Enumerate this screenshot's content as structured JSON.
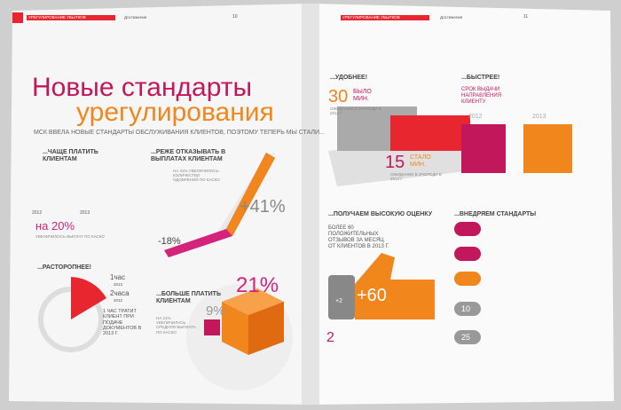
{
  "header": {
    "left": {
      "section": "УРЕГУЛИРОВАНИЕ УБЫТКОВ",
      "tab": "Достижения",
      "page": "10"
    },
    "right": {
      "section": "УРЕГУЛИРОВАНИЕ УБЫТКОВ",
      "tab": "Достижения",
      "page": "11"
    }
  },
  "title": {
    "line1": "Новые стандарты",
    "line2": "урегулирования"
  },
  "lead": "МСК ВВЕЛА НОВЫЕ СТАНДАРТЫ ОБСЛУЖИВАНИЯ КЛИЕНТОВ, ПОЭТОМУ ТЕПЕРЬ МЫ СТАЛИ...",
  "pay_often": {
    "heading": "...ЧАЩЕ ПЛАТИТЬ КЛИЕНТАМ",
    "big": "на 20%",
    "note": "УВЕЛИЧИЛОСЬ ВЫПЛАТ ПО КАСКО",
    "year1": "2012",
    "year2": "2013"
  },
  "refuse_less": {
    "heading": "...РЕЖЕ ОТКАЗЫВАТЬ В ВЫПЛАТАХ КЛИЕНТАМ",
    "note": "НА 41% УВЕЛИЧИЛОСЬ КОЛИЧЕСТВО ОДОБРЕНИЙ ПО КАСКО",
    "big": "+41%",
    "small": "-18%"
  },
  "faster_docs": {
    "heading": "...РАСТОРОПНЕЕ!",
    "t1": "1час",
    "y1": "2013",
    "t2": "2часа",
    "y2": "2012",
    "note": "1 ЧАС ТРАТИТ КЛИЕНТ ПРИ ПОДАЧЕ ДОКУМЕНТОВ В 2013 Г."
  },
  "pay_more": {
    "heading": "...БОЛЬШЕ ПЛАТИТЬ КЛИЕНТАМ",
    "note": "НА 21% УВЕЛИЧИЛАСЬ СРЕДНЯЯ ВЫПЛАТА ПО КАСКО",
    "big": "21%",
    "small": "9%"
  },
  "convenient": {
    "heading": "...УДОБНЕЕ!",
    "was_num": "30",
    "was_label": "БЫЛО МИН.",
    "was_note": "ОЖИДАНИЕ В ОЧЕРЕДИ В 2012 Г.",
    "now_num": "15",
    "now_label": "СТАЛО МИН.",
    "now_note": "ОЖИДАНИЕ В ОЧЕРЕДИ В 2013 Г."
  },
  "quicker": {
    "heading": "...БЫСТРЕЕ!",
    "note": "СРОК ВЫДАЧИ НАПРАВЛЕНИЯ КЛИЕНТУ",
    "y1": "2012",
    "y2": "2013"
  },
  "rating": {
    "heading": "...ПОЛУЧАЕМ ВЫСОКУЮ ОЦЕНКУ",
    "note": "БОЛЕЕ 60 ПОЛОЖИТЕЛЬНЫХ ОТЗЫВОВ ЗА МЕСЯЦ ОТ КЛИЕНТОВ В 2013 Г.",
    "big": "+60",
    "small": "+2",
    "num": "2"
  },
  "standards": {
    "heading": "...ВНЕДРЯЕМ СТАНДАРТЫ",
    "n1": "10",
    "n2": "25"
  }
}
